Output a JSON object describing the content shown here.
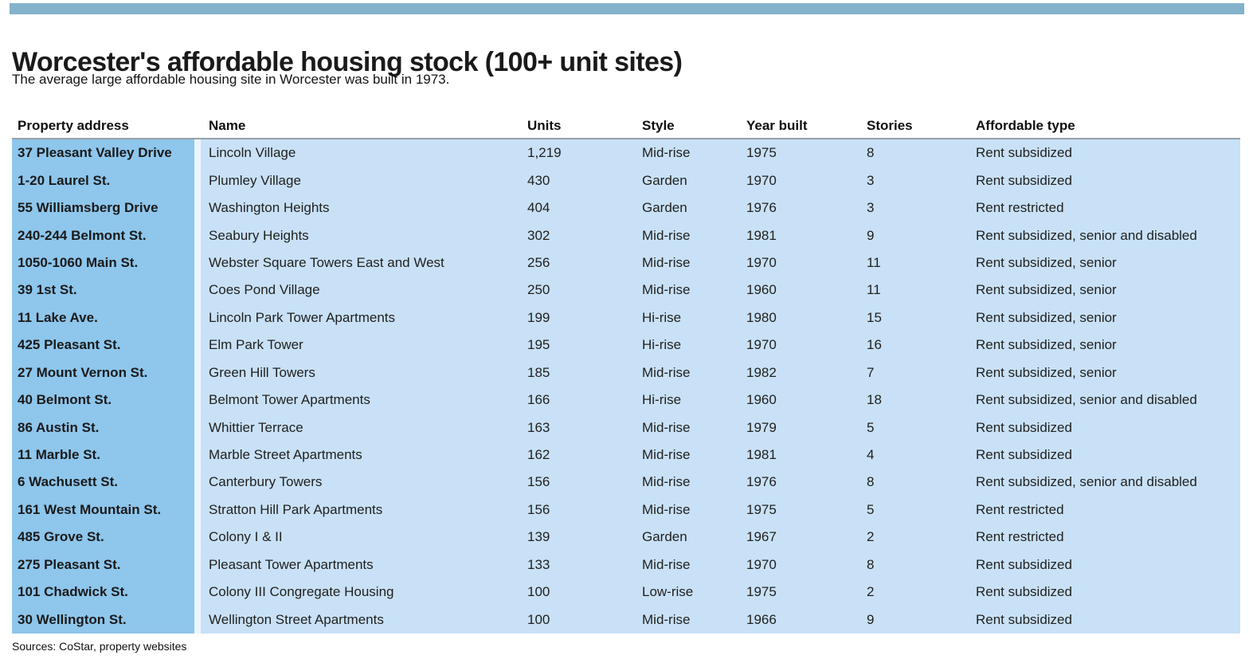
{
  "header": {
    "title": "Worcester's affordable housing stock (100+ unit sites)",
    "subtitle": "The average large affordable housing site in Worcester was built in 1973."
  },
  "footer": {
    "source_note": "Sources: CoStar, property websites"
  },
  "colors": {
    "top_bar": "#84B2CB",
    "address_column_bg": "#8EC6EC",
    "cell_bg": "#C8E1F6",
    "header_rule": "#97A1A8"
  },
  "chart_data": {
    "type": "table",
    "title": "Worcester's affordable housing stock (100+ unit sites)",
    "columns": [
      "Property address",
      "Name",
      "Units",
      "Style",
      "Year built",
      "Stories",
      "Affordable type"
    ],
    "rows": [
      {
        "address": "37 Pleasant Valley Drive",
        "name": "Lincoln Village",
        "units": "1,219",
        "style": "Mid-rise",
        "year_built": "1975",
        "stories": "8",
        "affordable_type": "Rent subsidized"
      },
      {
        "address": "1-20 Laurel St.",
        "name": "Plumley Village",
        "units": "430",
        "style": "Garden",
        "year_built": "1970",
        "stories": "3",
        "affordable_type": "Rent subsidized"
      },
      {
        "address": "55 Williamsberg Drive",
        "name": "Washington Heights",
        "units": "404",
        "style": "Garden",
        "year_built": "1976",
        "stories": "3",
        "affordable_type": "Rent restricted"
      },
      {
        "address": "240-244 Belmont St.",
        "name": "Seabury Heights",
        "units": "302",
        "style": "Mid-rise",
        "year_built": "1981",
        "stories": "9",
        "affordable_type": "Rent subsidized, senior and disabled"
      },
      {
        "address": "1050-1060 Main St.",
        "name": "Webster Square Towers East and West",
        "units": "256",
        "style": "Mid-rise",
        "year_built": "1970",
        "stories": "11",
        "affordable_type": "Rent subsidized, senior"
      },
      {
        "address": "39 1st St.",
        "name": "Coes Pond Village",
        "units": "250",
        "style": "Mid-rise",
        "year_built": "1960",
        "stories": "11",
        "affordable_type": "Rent subsidized, senior"
      },
      {
        "address": "11 Lake Ave.",
        "name": "Lincoln Park Tower Apartments",
        "units": "199",
        "style": "Hi-rise",
        "year_built": "1980",
        "stories": "15",
        "affordable_type": "Rent subsidized, senior"
      },
      {
        "address": "425 Pleasant St.",
        "name": "Elm Park Tower",
        "units": "195",
        "style": "Hi-rise",
        "year_built": "1970",
        "stories": "16",
        "affordable_type": "Rent subsidized, senior"
      },
      {
        "address": "27 Mount Vernon St.",
        "name": "Green Hill Towers",
        "units": "185",
        "style": "Mid-rise",
        "year_built": "1982",
        "stories": "7",
        "affordable_type": "Rent subsidized, senior"
      },
      {
        "address": "40 Belmont St.",
        "name": "Belmont Tower Apartments",
        "units": "166",
        "style": "Hi-rise",
        "year_built": "1960",
        "stories": "18",
        "affordable_type": "Rent subsidized, senior and disabled"
      },
      {
        "address": "86 Austin St.",
        "name": "Whittier Terrace",
        "units": "163",
        "style": "Mid-rise",
        "year_built": "1979",
        "stories": "5",
        "affordable_type": "Rent subsidized"
      },
      {
        "address": "11 Marble St.",
        "name": "Marble Street Apartments",
        "units": "162",
        "style": "Mid-rise",
        "year_built": "1981",
        "stories": "4",
        "affordable_type": "Rent subsidized"
      },
      {
        "address": "6 Wachusett St.",
        "name": "Canterbury Towers",
        "units": "156",
        "style": "Mid-rise",
        "year_built": "1976",
        "stories": "8",
        "affordable_type": "Rent subsidized, senior and disabled"
      },
      {
        "address": "161 West Mountain St.",
        "name": "Stratton Hill Park Apartments",
        "units": "156",
        "style": "Mid-rise",
        "year_built": "1975",
        "stories": "5",
        "affordable_type": "Rent restricted"
      },
      {
        "address": "485 Grove St.",
        "name": "Colony I & II",
        "units": "139",
        "style": "Garden",
        "year_built": "1967",
        "stories": "2",
        "affordable_type": "Rent restricted"
      },
      {
        "address": "275 Pleasant St.",
        "name": "Pleasant Tower Apartments",
        "units": "133",
        "style": "Mid-rise",
        "year_built": "1970",
        "stories": "8",
        "affordable_type": "Rent subsidized"
      },
      {
        "address": "101 Chadwick St.",
        "name": "Colony III Congregate Housing",
        "units": "100",
        "style": "Low-rise",
        "year_built": "1975",
        "stories": "2",
        "affordable_type": "Rent subsidized"
      },
      {
        "address": "30 Wellington St.",
        "name": "Wellington Street Apartments",
        "units": "100",
        "style": "Mid-rise",
        "year_built": "1966",
        "stories": "9",
        "affordable_type": "Rent subsidized"
      }
    ]
  }
}
